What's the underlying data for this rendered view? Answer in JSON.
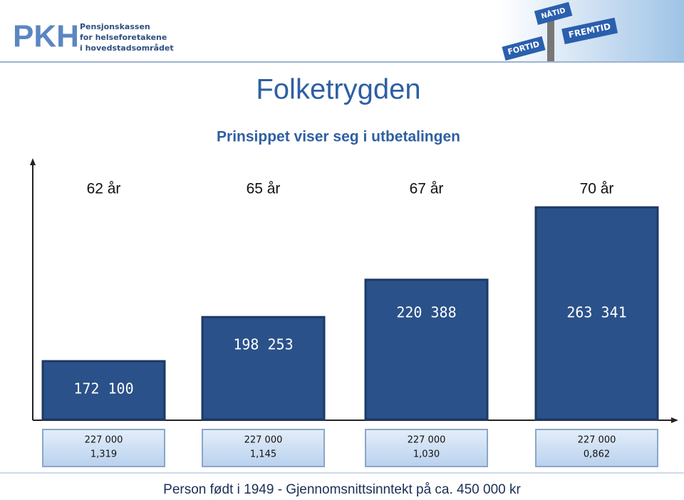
{
  "header": {
    "logo": "PKH",
    "logo_lines": [
      "Pensjonskassen",
      "for helseforetakene",
      "i hovedstadsområdet"
    ],
    "signs": [
      "NÅTID",
      "FREMTID",
      "FORTID"
    ]
  },
  "chart_data": {
    "type": "bar",
    "title": "Folketrygden",
    "subtitle": "Prinsippet viser seg i utbetalingen",
    "categories": [
      "62 år",
      "65 år",
      "67 år",
      "70 år"
    ],
    "values": [
      172100,
      198253,
      220388,
      263341
    ],
    "value_labels": [
      "172 100",
      "198 253",
      "220 388",
      "263 341"
    ],
    "color": "#2a5189",
    "ylim": [
      137500,
      290000
    ],
    "boxes": [
      [
        "227 000",
        "1,319"
      ],
      [
        "227 000",
        "1,145"
      ],
      [
        "227 000",
        "1,030"
      ],
      [
        "227 000",
        "0,862"
      ]
    ]
  },
  "footer": "Person født i 1949  - Gjennomsnittsinntekt på ca. 450 000 kr"
}
